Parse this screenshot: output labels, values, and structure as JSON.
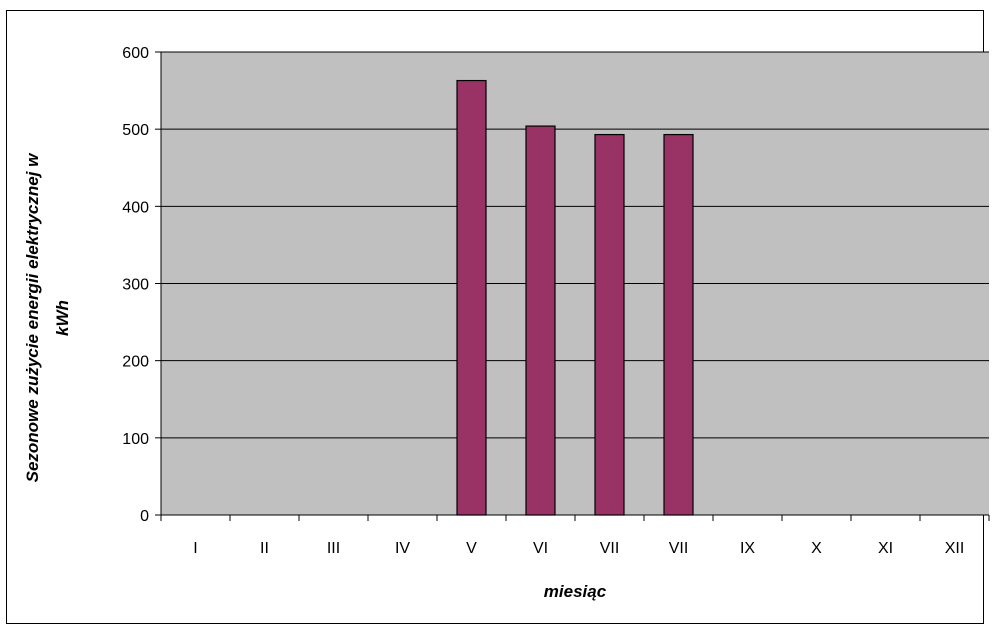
{
  "chart_data": {
    "type": "bar",
    "categories": [
      "I",
      "II",
      "III",
      "IV",
      "V",
      "VI",
      "VII",
      "VII",
      "IX",
      "X",
      "XI",
      "XII"
    ],
    "values": [
      0,
      0,
      0,
      0,
      563,
      504,
      493,
      493,
      0,
      0,
      0,
      0
    ],
    "xlabel": "miesiąc",
    "ylabel_line1": "Sezonowe zużycie energii elektrycznej w",
    "ylabel_line2": "kWh",
    "ylim": [
      0,
      600
    ],
    "yticks": [
      0,
      100,
      200,
      300,
      400,
      500,
      600
    ],
    "grid": true,
    "legend": "none",
    "colors": {
      "bar_fill": "#993366",
      "bar_stroke": "#000000",
      "plot_background": "#c0c0c0",
      "gridline": "#000000"
    }
  }
}
